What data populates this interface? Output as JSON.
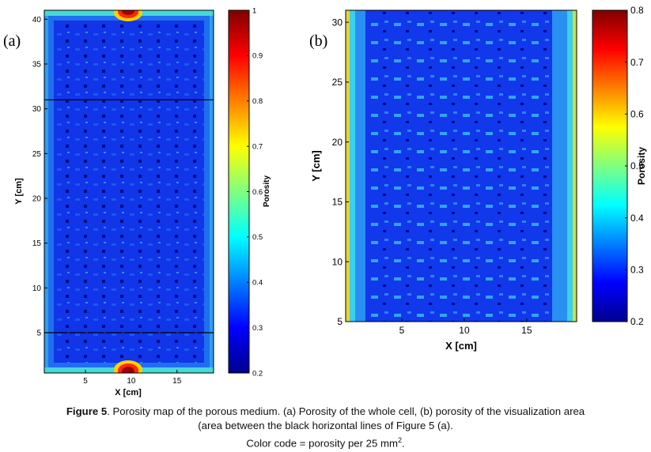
{
  "chart_data": [
    {
      "type": "heatmap",
      "panel_label": "(a)",
      "title": "",
      "xlabel": "X [cm]",
      "ylabel": "Y [cm]",
      "xlim": [
        0.5,
        19
      ],
      "ylim": [
        0.5,
        41
      ],
      "xticks": [
        "5",
        "10",
        "15"
      ],
      "xtick_values": [
        5,
        10,
        15
      ],
      "yticks": [
        "5",
        "10",
        "15",
        "20",
        "25",
        "30",
        "35",
        "40"
      ],
      "ytick_values": [
        5,
        10,
        15,
        20,
        25,
        30,
        35,
        40
      ],
      "colorbar_label": "Porosity",
      "colorbar_range": [
        0.2,
        1
      ],
      "colorbar_ticks": [
        "0.2",
        "0.3",
        "0.4",
        "0.5",
        "0.6",
        "0.7",
        "0.8",
        "0.9",
        "1"
      ],
      "colorbar_tick_values": [
        0.2,
        0.3,
        0.4,
        0.5,
        0.6,
        0.7,
        0.8,
        0.9,
        1.0
      ],
      "horizontal_lines_y": [
        5,
        31
      ],
      "interior_porosity": 0.27,
      "edge_porosity": 0.4,
      "hotspots": [
        {
          "x": 10,
          "y": 41,
          "porosity": 1.0
        },
        {
          "x": 10,
          "y": 0.5,
          "porosity": 1.0
        }
      ]
    },
    {
      "type": "heatmap",
      "panel_label": "(b)",
      "title": "",
      "xlabel": "X [cm]",
      "ylabel": "Y [cm]",
      "xlim": [
        0.5,
        19
      ],
      "ylim": [
        5,
        31
      ],
      "xticks": [
        "5",
        "10",
        "15"
      ],
      "xtick_values": [
        5,
        10,
        15
      ],
      "yticks": [
        "5",
        "10",
        "15",
        "20",
        "25",
        "30"
      ],
      "ytick_values": [
        5,
        10,
        15,
        20,
        25,
        30
      ],
      "colorbar_label": "Porosity",
      "colorbar_range": [
        0.2,
        0.8
      ],
      "colorbar_ticks": [
        "0.2",
        "0.3",
        "0.4",
        "0.5",
        "0.6",
        "0.7",
        "0.8"
      ],
      "colorbar_tick_values": [
        0.2,
        0.3,
        0.4,
        0.5,
        0.6,
        0.7,
        0.8
      ],
      "interior_porosity": 0.27,
      "edge_porosity": 0.4
    }
  ],
  "caption": {
    "figure_label": "Figure 5",
    "line1_rest": ". Porosity map of the porous medium. (a) Porosity of the whole cell, (b) porosity of the visualization area",
    "line2": "(area between the black horizontal lines of Figure 5 (a).",
    "line3_main": "Color code = porosity per 25 mm",
    "line3_sup": "2",
    "line3_end": "."
  }
}
